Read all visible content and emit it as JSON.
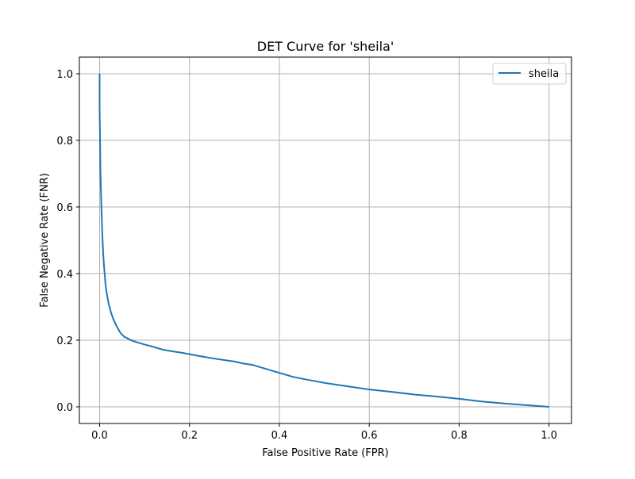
{
  "chart_data": {
    "type": "line",
    "title": "DET Curve for 'sheila'",
    "xlabel": "False Positive Rate (FPR)",
    "ylabel": "False Negative Rate (FNR)",
    "xlim": [
      -0.045,
      1.05
    ],
    "ylim": [
      -0.05,
      1.05
    ],
    "xticks": [
      0.0,
      0.2,
      0.4,
      0.6,
      0.8,
      1.0
    ],
    "yticks": [
      0.0,
      0.2,
      0.4,
      0.6,
      0.8,
      1.0
    ],
    "xtick_labels": [
      "0.0",
      "0.2",
      "0.4",
      "0.6",
      "0.8",
      "1.0"
    ],
    "ytick_labels": [
      "0.0",
      "0.2",
      "0.4",
      "0.6",
      "0.8",
      "1.0"
    ],
    "grid": true,
    "legend": {
      "position": "upper-right"
    },
    "series": [
      {
        "name": "sheila",
        "color": "#1f77b4",
        "x": [
          0.0,
          0.0,
          0.001,
          0.002,
          0.004,
          0.006,
          0.008,
          0.01,
          0.013,
          0.016,
          0.02,
          0.025,
          0.03,
          0.035,
          0.04,
          0.045,
          0.05,
          0.055,
          0.06,
          0.07,
          0.08,
          0.1,
          0.12,
          0.14,
          0.16,
          0.18,
          0.2,
          0.22,
          0.25,
          0.28,
          0.3,
          0.32,
          0.34,
          0.36,
          0.38,
          0.4,
          0.43,
          0.46,
          0.5,
          0.55,
          0.6,
          0.65,
          0.7,
          0.75,
          0.8,
          0.85,
          0.9,
          0.95,
          1.0
        ],
        "y": [
          1.0,
          0.9,
          0.8,
          0.7,
          0.6,
          0.52,
          0.46,
          0.42,
          0.37,
          0.34,
          0.31,
          0.285,
          0.265,
          0.25,
          0.237,
          0.225,
          0.217,
          0.21,
          0.207,
          0.2,
          0.195,
          0.187,
          0.18,
          0.172,
          0.167,
          0.163,
          0.158,
          0.153,
          0.146,
          0.14,
          0.136,
          0.13,
          0.126,
          0.118,
          0.11,
          0.102,
          0.09,
          0.082,
          0.072,
          0.062,
          0.052,
          0.045,
          0.037,
          0.031,
          0.024,
          0.016,
          0.01,
          0.005,
          0.0
        ]
      }
    ]
  }
}
